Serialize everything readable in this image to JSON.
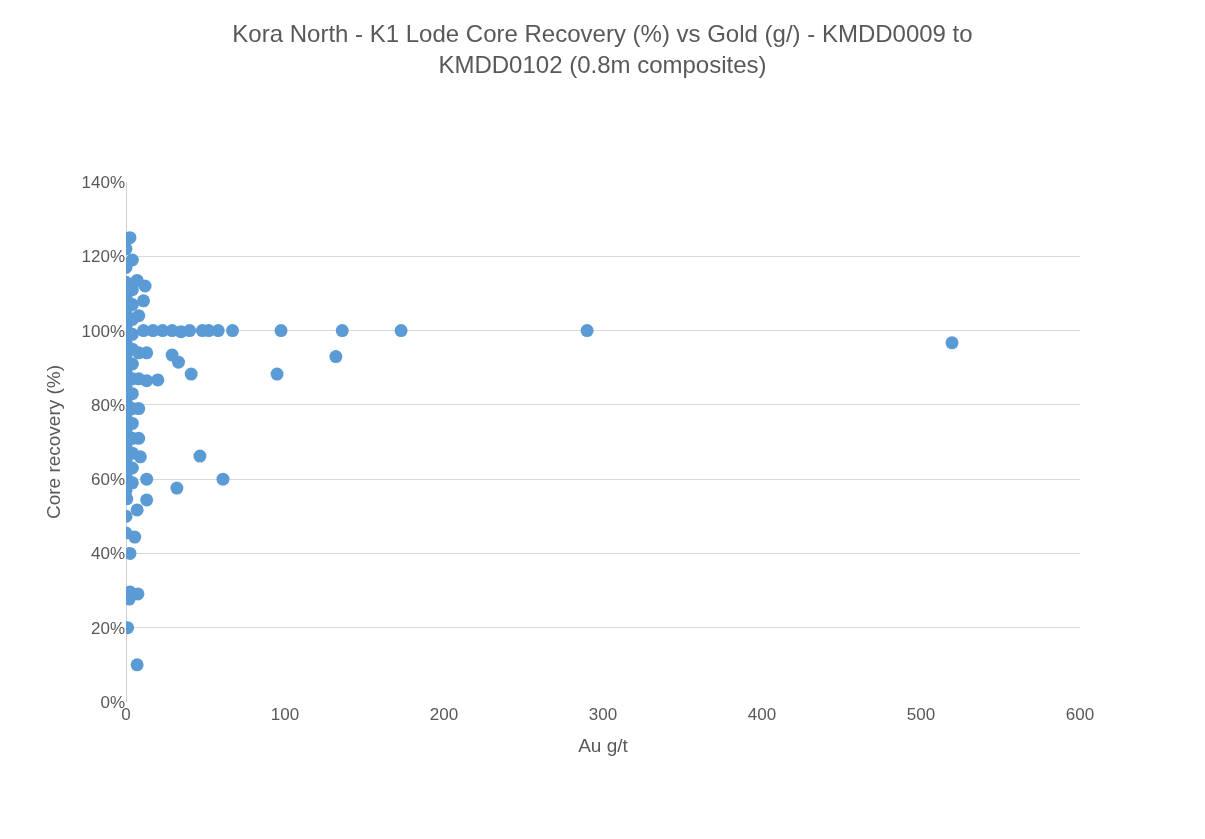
{
  "chart_data": {
    "type": "scatter",
    "title": "Kora North - K1 Lode Core Recovery (%) vs Gold (g/) - KMDD0009 to KMDD0102 (0.8m composites)",
    "xlabel": "Au g/t",
    "ylabel": "Core recovery (%)",
    "x": [
      519.5,
      290,
      173,
      136,
      132,
      97.5,
      95,
      67,
      58,
      52,
      48,
      61,
      46.5,
      41,
      33,
      29,
      32,
      20,
      13,
      13,
      7,
      7,
      7.5,
      2,
      2.5,
      1,
      2.5,
      5.5,
      0,
      0,
      0.5,
      40,
      34.6,
      29,
      23,
      17,
      11,
      0,
      0,
      0,
      0,
      0,
      0,
      0,
      0,
      0,
      0,
      0,
      0,
      0,
      0,
      0,
      0,
      4,
      4,
      4,
      4,
      4,
      4,
      4,
      4,
      4,
      4,
      4,
      4,
      4,
      4,
      4,
      2.5,
      0,
      8,
      8,
      8,
      8,
      8,
      7,
      12,
      11,
      13,
      13,
      9
    ],
    "values": [
      96.7,
      100,
      100,
      100,
      93,
      100,
      88.3,
      100,
      100,
      100,
      100,
      60,
      66.2,
      88.3,
      91.5,
      93.4,
      57.6,
      86.7,
      60,
      54.4,
      51.7,
      10,
      29.1,
      27.7,
      29.6,
      20,
      40,
      44.4,
      45.5,
      50,
      54.7,
      100,
      99.7,
      100,
      100,
      100,
      100,
      57,
      61,
      65,
      69,
      73,
      77,
      81,
      85,
      89,
      93,
      97,
      101,
      105,
      109,
      113,
      117,
      59,
      63,
      67,
      71,
      75,
      79,
      83,
      87,
      91,
      95,
      99,
      103,
      107,
      111,
      119,
      125,
      122,
      71,
      79,
      87,
      94,
      104,
      113.5,
      112,
      108,
      94,
      86.5,
      66
    ],
    "xlim": [
      0,
      600
    ],
    "xticks": [
      0,
      100,
      200,
      300,
      400,
      500,
      600
    ],
    "ylim": [
      0,
      140
    ],
    "yticks": [
      {
        "value": 0,
        "label": "0%"
      },
      {
        "value": 20,
        "label": "20%"
      },
      {
        "value": 40,
        "label": "40%"
      },
      {
        "value": 60,
        "label": "60%"
      },
      {
        "value": 80,
        "label": "80%"
      },
      {
        "value": 100,
        "label": "100%"
      },
      {
        "value": 120,
        "label": "120%"
      },
      {
        "value": 140,
        "label": "140%"
      }
    ],
    "color": "#5b9bd5",
    "marker": "circle",
    "grid": "y"
  }
}
